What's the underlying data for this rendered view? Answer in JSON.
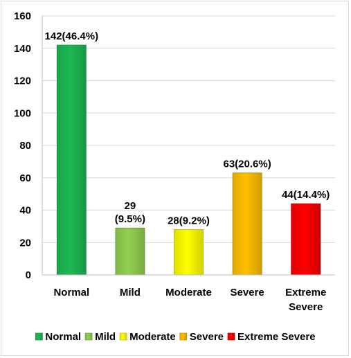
{
  "chart_data": {
    "type": "bar",
    "categories": [
      "Normal",
      "Mild",
      "Moderate",
      "Severe",
      "Extreme Severe"
    ],
    "category_lines": [
      [
        "Normal"
      ],
      [
        "Mild"
      ],
      [
        "Moderate"
      ],
      [
        "Severe"
      ],
      [
        "Extreme",
        "Severe"
      ]
    ],
    "values": [
      142,
      29,
      28,
      63,
      44
    ],
    "data_labels": [
      [
        "142(46.4%)"
      ],
      [
        "29",
        "(9.5%)"
      ],
      [
        "28(9.2%)"
      ],
      [
        "63(20.6%)"
      ],
      [
        "44(14.4%)"
      ]
    ],
    "colors": [
      "#1db954",
      "#92d050",
      "#ffff00",
      "#ffc000",
      "#ff0000"
    ],
    "ylim": [
      0,
      160
    ],
    "yticks": [
      0,
      20,
      40,
      60,
      80,
      100,
      120,
      140,
      160
    ],
    "title": "",
    "xlabel": "",
    "ylabel": "",
    "grid": true,
    "legend": {
      "position": "bottom",
      "entries": [
        "Normal",
        "Mild",
        "Moderate",
        "Severe",
        "Extreme Severe"
      ]
    }
  }
}
